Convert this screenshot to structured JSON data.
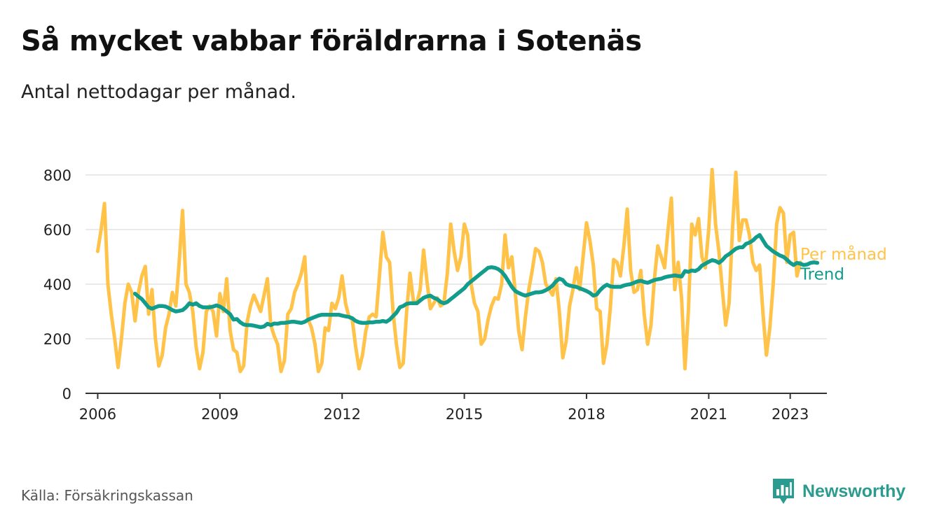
{
  "title": "Så mycket vabbar föräldrarna i Sotenäs",
  "subtitle": "Antal nettodagar per månad.",
  "source": "Källa: Försäkringskassan",
  "brand": {
    "name": "Newsworthy",
    "icon": "bar-chart-speech-icon"
  },
  "colors": {
    "monthly": "#FFC34A",
    "trend": "#129C8C",
    "grid": "#dddddd",
    "axis": "#333333",
    "text": "#222222"
  },
  "chart_data": {
    "type": "line",
    "title": "Så mycket vabbar föräldrarna i Sotenäs",
    "subtitle": "Antal nettodagar per månad.",
    "xlabel": "",
    "ylabel": "",
    "ylim": [
      0,
      800
    ],
    "yticks": [
      0,
      200,
      400,
      600,
      800
    ],
    "xlim": [
      2005.7,
      2023.9
    ],
    "xticks": [
      {
        "value": 2006,
        "label": "2006"
      },
      {
        "value": 2009,
        "label": "2009"
      },
      {
        "value": 2012,
        "label": "2012"
      },
      {
        "value": 2015,
        "label": "2015"
      },
      {
        "value": 2018,
        "label": "2018"
      },
      {
        "value": 2021,
        "label": "2021"
      },
      {
        "value": 2023,
        "label": "2023"
      }
    ],
    "grid": true,
    "legend": "right-end-labels",
    "series": [
      {
        "name": "Per månad",
        "start": 2006.0,
        "step": 0.08333,
        "values": [
          520,
          600,
          695,
          400,
          290,
          200,
          95,
          200,
          330,
          400,
          370,
          265,
          370,
          430,
          465,
          290,
          380,
          200,
          100,
          140,
          240,
          290,
          370,
          320,
          480,
          670,
          400,
          370,
          300,
          170,
          90,
          150,
          300,
          320,
          300,
          210,
          365,
          300,
          420,
          230,
          160,
          150,
          80,
          100,
          260,
          320,
          360,
          330,
          300,
          360,
          420,
          250,
          210,
          180,
          80,
          120,
          290,
          310,
          370,
          400,
          440,
          500,
          270,
          240,
          180,
          80,
          110,
          240,
          230,
          330,
          310,
          350,
          430,
          330,
          280,
          270,
          170,
          90,
          140,
          230,
          280,
          290,
          280,
          430,
          590,
          500,
          480,
          300,
          180,
          95,
          110,
          300,
          440,
          340,
          330,
          380,
          525,
          410,
          310,
          330,
          350,
          320,
          330,
          440,
          620,
          520,
          450,
          500,
          620,
          580,
          400,
          330,
          300,
          180,
          200,
          270,
          320,
          350,
          345,
          400,
          580,
          460,
          500,
          370,
          230,
          160,
          280,
          380,
          450,
          530,
          520,
          480,
          400,
          380,
          360,
          420,
          300,
          130,
          190,
          320,
          380,
          460,
          380,
          500,
          625,
          560,
          470,
          310,
          300,
          110,
          180,
          310,
          490,
          480,
          430,
          540,
          675,
          450,
          370,
          380,
          450,
          290,
          180,
          250,
          420,
          540,
          500,
          460,
          600,
          715,
          380,
          480,
          350,
          90,
          300,
          620,
          580,
          640,
          500,
          460,
          600,
          820,
          620,
          520,
          380,
          250,
          330,
          600,
          810,
          560,
          635,
          635,
          580,
          480,
          450,
          470,
          290,
          140,
          240,
          400,
          620,
          680,
          660,
          480,
          580,
          590,
          430,
          480
        ]
      },
      {
        "name": "Trend",
        "start": 2006.917,
        "step": 0.08333,
        "values": [
          365,
          355,
          345,
          330,
          315,
          310,
          315,
          320,
          320,
          318,
          312,
          305,
          300,
          302,
          305,
          315,
          330,
          325,
          330,
          320,
          315,
          315,
          315,
          318,
          322,
          318,
          310,
          300,
          290,
          270,
          272,
          260,
          252,
          250,
          250,
          248,
          245,
          242,
          245,
          255,
          250,
          256,
          255,
          258,
          258,
          260,
          262,
          262,
          260,
          258,
          262,
          270,
          275,
          280,
          285,
          288,
          288,
          288,
          288,
          288,
          288,
          285,
          282,
          280,
          275,
          265,
          260,
          258,
          258,
          260,
          260,
          262,
          262,
          265,
          262,
          270,
          283,
          295,
          315,
          320,
          328,
          330,
          330,
          330,
          340,
          350,
          355,
          358,
          350,
          345,
          335,
          330,
          335,
          345,
          355,
          365,
          375,
          385,
          400,
          410,
          420,
          430,
          440,
          450,
          460,
          462,
          460,
          455,
          445,
          430,
          410,
          390,
          375,
          368,
          362,
          358,
          362,
          366,
          370,
          370,
          372,
          378,
          385,
          395,
          410,
          420,
          415,
          400,
          395,
          392,
          390,
          385,
          380,
          375,
          368,
          358,
          362,
          378,
          390,
          398,
          392,
          390,
          390,
          390,
          395,
          398,
          400,
          405,
          410,
          412,
          408,
          405,
          410,
          415,
          418,
          420,
          425,
          428,
          430,
          432,
          430,
          428,
          448,
          445,
          450,
          448,
          455,
          468,
          475,
          482,
          488,
          485,
          478,
          488,
          502,
          510,
          520,
          530,
          535,
          535,
          548,
          552,
          560,
          572,
          580,
          560,
          540,
          530,
          520,
          512,
          505,
          500,
          490,
          478,
          470,
          478,
          475,
          470,
          472,
          478,
          480,
          478
        ]
      }
    ]
  }
}
